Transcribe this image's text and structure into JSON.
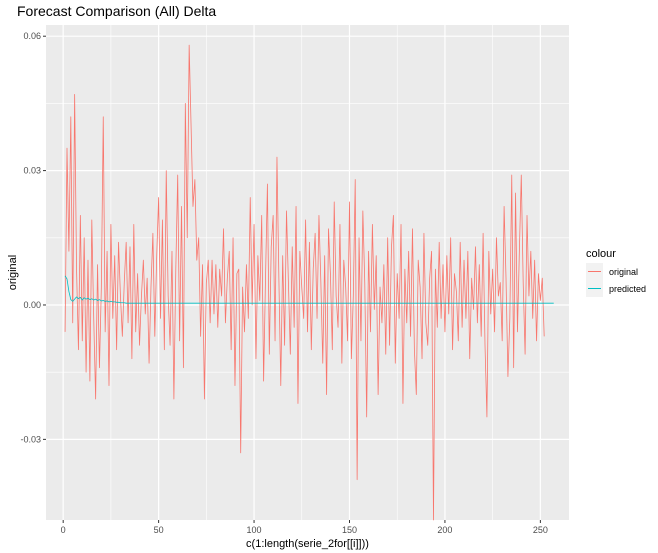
{
  "chart_data": {
    "type": "line",
    "title": "Forecast Comparison (All) Delta",
    "xlabel": "c(1:length(serie_2for[[i]]))",
    "ylabel": "original",
    "xlim": [
      -9,
      265
    ],
    "ylim": [
      -0.048,
      0.0625
    ],
    "x_ticks": [
      0,
      50,
      100,
      150,
      200,
      250
    ],
    "y_ticks": [
      -0.03,
      0.0,
      0.03,
      0.06
    ],
    "y_tick_labels": [
      "-0.03",
      "0.00",
      "0.03",
      "0.06"
    ],
    "grid": true,
    "legend": {
      "title": "colour",
      "position": "right"
    },
    "series": [
      {
        "name": "original",
        "color": "#F8766D",
        "x_start": 1,
        "values": [
          -0.006,
          0.035,
          0.012,
          0.042,
          -0.004,
          0.047,
          0.008,
          -0.01,
          0.02,
          -0.008,
          0.015,
          -0.015,
          0.01,
          -0.017,
          0.019,
          -0.003,
          -0.021,
          0.009,
          -0.014,
          0.004,
          0.042,
          -0.006,
          0.012,
          -0.018,
          0.018,
          -0.003,
          0.011,
          -0.01,
          0.014,
          0.002,
          -0.007,
          0.005,
          0.014,
          -0.004,
          0.013,
          -0.012,
          0.018,
          -0.006,
          0.007,
          -0.009,
          0.002,
          0.01,
          -0.002,
          0.006,
          -0.013,
          0.004,
          0.016,
          -0.007,
          0.011,
          0.024,
          -0.003,
          0.019,
          -0.01,
          0.03,
          0.002,
          -0.009,
          0.012,
          -0.021,
          0.008,
          0.029,
          -0.008,
          0.022,
          -0.014,
          0.045,
          0.015,
          0.058,
          0.04,
          0.022,
          0.028,
          0.01,
          0.015,
          -0.007,
          0.009,
          -0.021,
          0.005,
          0.01,
          -0.004,
          0.01,
          -0.002,
          0.009,
          -0.005,
          0.008,
          0.002,
          0.017,
          -0.004,
          0.006,
          0.012,
          -0.01,
          0.015,
          -0.018,
          0.007,
          0.008,
          -0.033,
          0.004,
          -0.006,
          0.009,
          -0.003,
          0.024,
          0.0,
          0.018,
          -0.012,
          0.011,
          0.001,
          0.02,
          -0.017,
          0.006,
          0.027,
          -0.011,
          0.013,
          0.02,
          -0.008,
          0.033,
          0.006,
          -0.018,
          0.011,
          -0.009,
          0.021,
          0.005,
          -0.011,
          0.013,
          -0.005,
          0.022,
          -0.022,
          0.012,
          0.004,
          -0.003,
          0.019,
          -0.006,
          0.014,
          -0.01,
          0.008,
          0.016,
          -0.003,
          0.02,
          0.005,
          -0.013,
          0.011,
          -0.02,
          0.017,
          0.007,
          -0.01,
          0.023,
          0.002,
          -0.005,
          0.018,
          -0.013,
          0.01,
          0.004,
          -0.008,
          0.023,
          -0.012,
          0.002,
          0.028,
          -0.039,
          0.015,
          -0.008,
          0.021,
          0.005,
          -0.025,
          0.012,
          -0.006,
          0.018,
          -0.001,
          0.011,
          -0.02,
          0.004,
          -0.004,
          0.009,
          -0.011,
          0.015,
          -0.009,
          0.013,
          0.02,
          -0.013,
          0.007,
          -0.003,
          0.018,
          -0.022,
          0.008,
          -0.004,
          0.012,
          -0.007,
          0.017,
          -0.01,
          -0.02,
          0.01,
          0.004,
          -0.012,
          0.016,
          -0.004,
          -0.009,
          0.006,
          0.012,
          -0.048,
          0.008,
          -0.005,
          0.014,
          -0.003,
          0.009,
          -0.006,
          0.011,
          -0.002,
          0.015,
          -0.01,
          0.007,
          0.003,
          -0.008,
          0.014,
          -0.005,
          0.01,
          -0.003,
          0.012,
          -0.012,
          0.006,
          -0.001,
          0.013,
          -0.004,
          0.009,
          -0.007,
          0.016,
          -0.009,
          -0.025,
          0.012,
          -0.002,
          0.008,
          -0.006,
          0.015,
          0.002,
          0.005,
          -0.008,
          0.022,
          0.006,
          -0.016,
          -0.003,
          0.029,
          -0.014,
          0.025,
          -0.006,
          0.012,
          0.029,
          0.005,
          -0.011,
          0.02,
          0.002,
          0.012,
          -0.003,
          0.01,
          -0.008,
          0.007,
          0.001,
          0.006,
          -0.007
        ]
      },
      {
        "name": "predicted",
        "color": "#00BFC4",
        "x_start": 1,
        "values": [
          0.0065,
          0.0058,
          0.003,
          0.0012,
          0.0008,
          0.0013,
          0.0018,
          0.0014,
          0.0017,
          0.0011,
          0.0016,
          0.0013,
          0.0015,
          0.0012,
          0.0014,
          0.0011,
          0.0013,
          0.001,
          0.0012,
          0.0009,
          0.001,
          0.0008,
          0.0009,
          0.0007,
          0.0008,
          0.0007,
          0.0007,
          0.0006,
          0.0006,
          0.0005,
          0.0005,
          0.0005,
          0.0004,
          0.0004,
          0.0004,
          0.0004,
          0.0004,
          0.0004,
          0.0004,
          0.0004,
          0.0004,
          0.0004,
          0.0004,
          0.0004,
          0.0004,
          0.0004,
          0.0004,
          0.0004,
          0.0004,
          0.0004,
          0.0004,
          0.0004,
          0.0004,
          0.0004,
          0.0004,
          0.0004,
          0.0004,
          0.0004,
          0.0004,
          0.0004,
          0.0004,
          0.0004,
          0.0004,
          0.0004,
          0.0004,
          0.0004,
          0.0004,
          0.0004,
          0.0004,
          0.0004,
          0.0004,
          0.0004,
          0.0004,
          0.0004,
          0.0004,
          0.0004,
          0.0004,
          0.0004,
          0.0004,
          0.0004,
          0.0004,
          0.0004,
          0.0004,
          0.0004,
          0.0004,
          0.0004,
          0.0004,
          0.0004,
          0.0004,
          0.0004,
          0.0004,
          0.0004,
          0.0004,
          0.0004,
          0.0004,
          0.0004,
          0.0004,
          0.0004,
          0.0004,
          0.0004,
          0.0004,
          0.0004,
          0.0004,
          0.0004,
          0.0004,
          0.0004,
          0.0004,
          0.0004,
          0.0004,
          0.0004,
          0.0004,
          0.0004,
          0.0004,
          0.0004,
          0.0004,
          0.0004,
          0.0004,
          0.0004,
          0.0004,
          0.0004,
          0.0004,
          0.0004,
          0.0004,
          0.0004,
          0.0004,
          0.0004,
          0.0004,
          0.0004,
          0.0004,
          0.0004,
          0.0004,
          0.0004,
          0.0004,
          0.0004,
          0.0004,
          0.0004,
          0.0004,
          0.0004,
          0.0004,
          0.0004,
          0.0004,
          0.0004,
          0.0004,
          0.0004,
          0.0004,
          0.0004,
          0.0004,
          0.0004,
          0.0004,
          0.0004,
          0.0004,
          0.0004,
          0.0004,
          0.0004,
          0.0004,
          0.0004,
          0.0004,
          0.0004,
          0.0004,
          0.0004,
          0.0004,
          0.0004,
          0.0004,
          0.0004,
          0.0004,
          0.0004,
          0.0004,
          0.0004,
          0.0004,
          0.0004,
          0.0004,
          0.0004,
          0.0004,
          0.0004,
          0.0004,
          0.0004,
          0.0004,
          0.0004,
          0.0004,
          0.0004,
          0.0004,
          0.0004,
          0.0004,
          0.0004,
          0.0004,
          0.0004,
          0.0004,
          0.0004,
          0.0004,
          0.0004,
          0.0004,
          0.0004,
          0.0004,
          0.0004,
          0.0004,
          0.0004,
          0.0004,
          0.0004,
          0.0004,
          0.0004,
          0.0004,
          0.0004,
          0.0004,
          0.0004,
          0.0004,
          0.0004,
          0.0004,
          0.0004,
          0.0004,
          0.0004,
          0.0004,
          0.0004,
          0.0004,
          0.0004,
          0.0004,
          0.0004,
          0.0004,
          0.0004,
          0.0004,
          0.0004,
          0.0004,
          0.0004,
          0.0004,
          0.0004,
          0.0004,
          0.0004,
          0.0004,
          0.0004,
          0.0004,
          0.0004,
          0.0004,
          0.0004,
          0.0004,
          0.0004,
          0.0004,
          0.0004,
          0.0004,
          0.0004,
          0.0004,
          0.0004,
          0.0004,
          0.0004,
          0.0004,
          0.0004,
          0.0004,
          0.0004,
          0.0004,
          0.0004,
          0.0004,
          0.0004,
          0.0004,
          0.0004,
          0.0004,
          0.0004,
          0.0004,
          0.0004,
          0.0004
        ]
      }
    ]
  }
}
